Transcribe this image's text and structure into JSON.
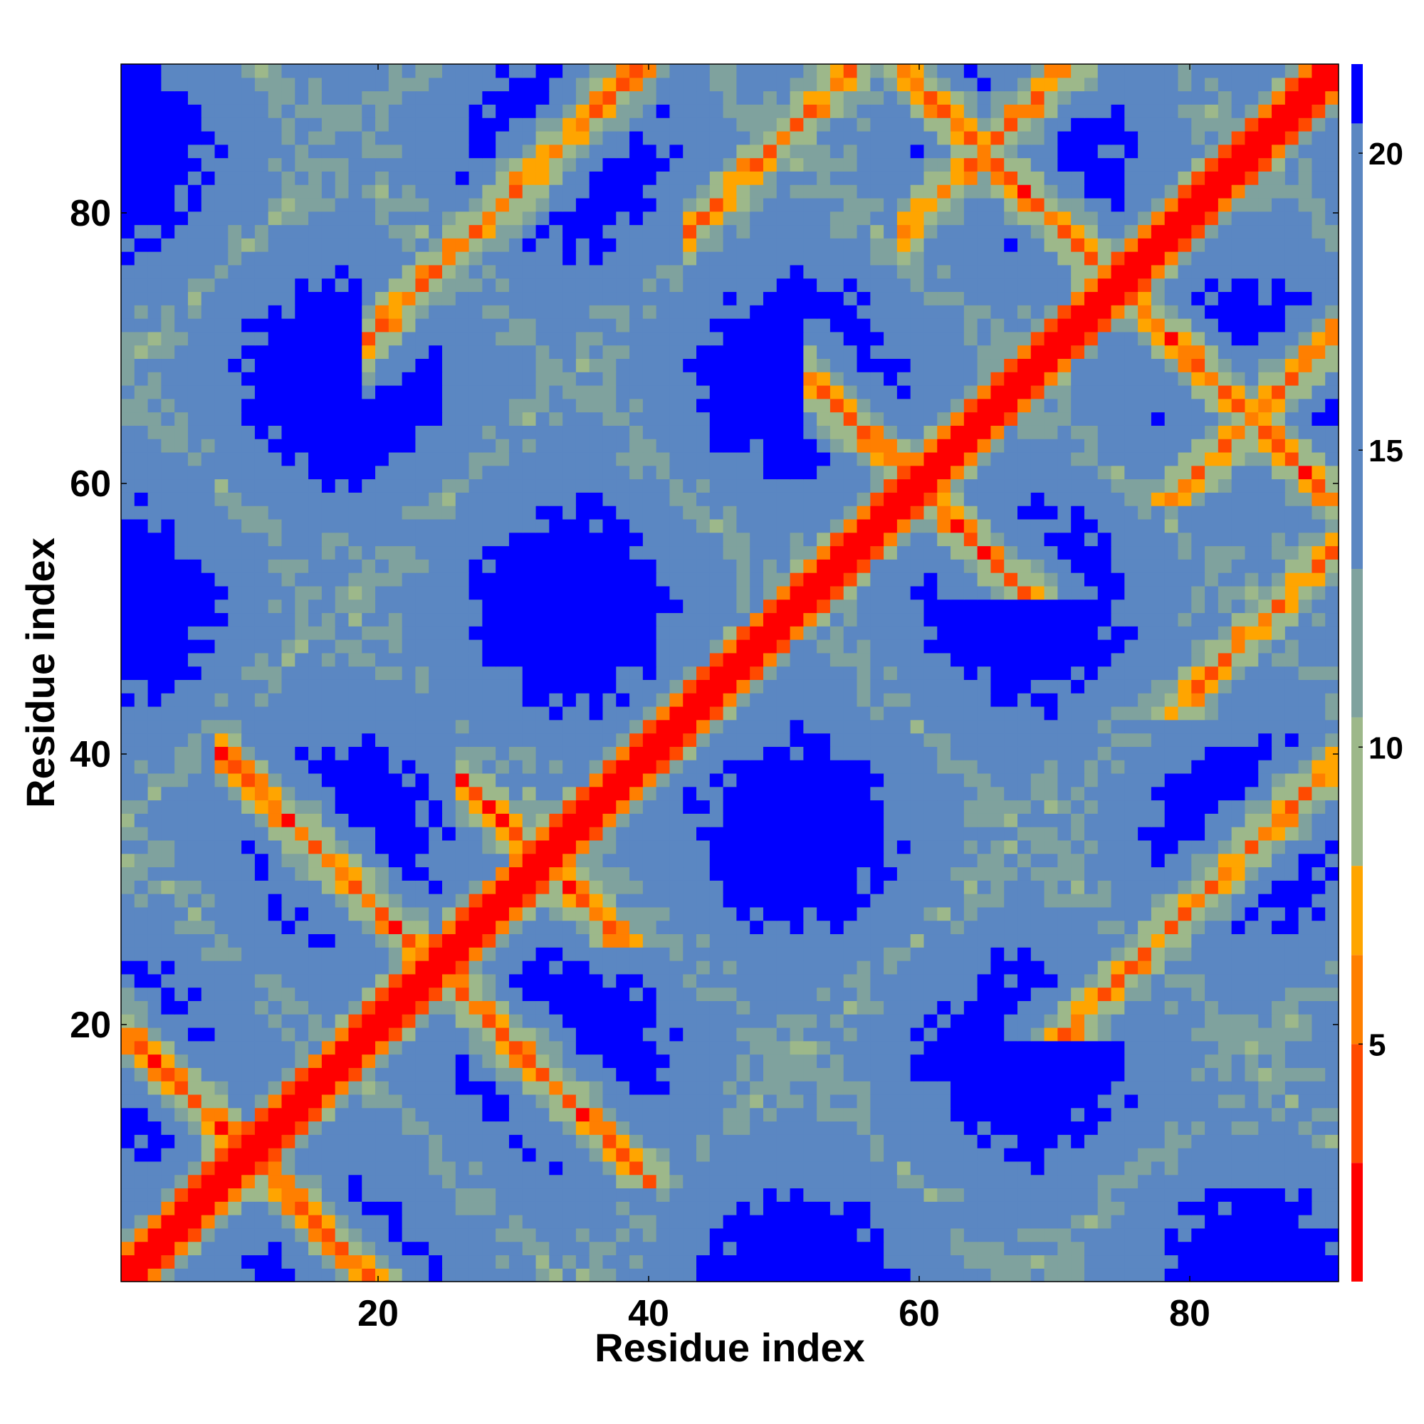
{
  "chart_data": {
    "type": "heatmap",
    "title": "",
    "xlabel": "Residue index",
    "ylabel": "Residue index",
    "n_residues": 91,
    "xlim": [
      1,
      91
    ],
    "ylim": [
      1,
      91
    ],
    "x_ticks": [
      20,
      40,
      60,
      80
    ],
    "y_ticks": [
      20,
      40,
      60,
      80
    ],
    "colorbar": {
      "label": "",
      "range": [
        1,
        21.5
      ],
      "ticks": [
        5,
        10,
        15,
        20
      ],
      "position": "right"
    },
    "colormap": [
      {
        "max": 3,
        "color": "#ff0000"
      },
      {
        "max": 5,
        "color": "#ff4a00"
      },
      {
        "max": 6.5,
        "color": "#ff7f00"
      },
      {
        "max": 8,
        "color": "#ffa500"
      },
      {
        "max": 10.5,
        "color": "#9db88a"
      },
      {
        "max": 13,
        "color": "#7fa29e"
      },
      {
        "max": 20.5,
        "color": "#5b87c2"
      },
      {
        "max": 999,
        "color": "#0000ff"
      }
    ],
    "structure": {
      "main_diagonal": {
        "from": 1,
        "to": 91,
        "distance": 1
      },
      "antiparallel_contacts": [
        {
          "center_sum": 20,
          "range": [
            2,
            18
          ]
        },
        {
          "center_sum": 48,
          "range": [
            10,
            36
          ]
        },
        {
          "center_sum": 64,
          "range": [
            28,
            36
          ]
        },
        {
          "center_sum": 120,
          "range": [
            54,
            66
          ]
        },
        {
          "center_sum": 150,
          "range": [
            58,
            91
          ]
        }
      ],
      "parallel_contacts": [
        {
          "offset": 52,
          "range": [
            22,
            39
          ]
        },
        {
          "offset": 36,
          "range": [
            46,
            55
          ]
        },
        {
          "offset": 20,
          "range": [
            62,
            91
          ]
        }
      ],
      "grid_gridlines": false,
      "legend": "none"
    }
  }
}
